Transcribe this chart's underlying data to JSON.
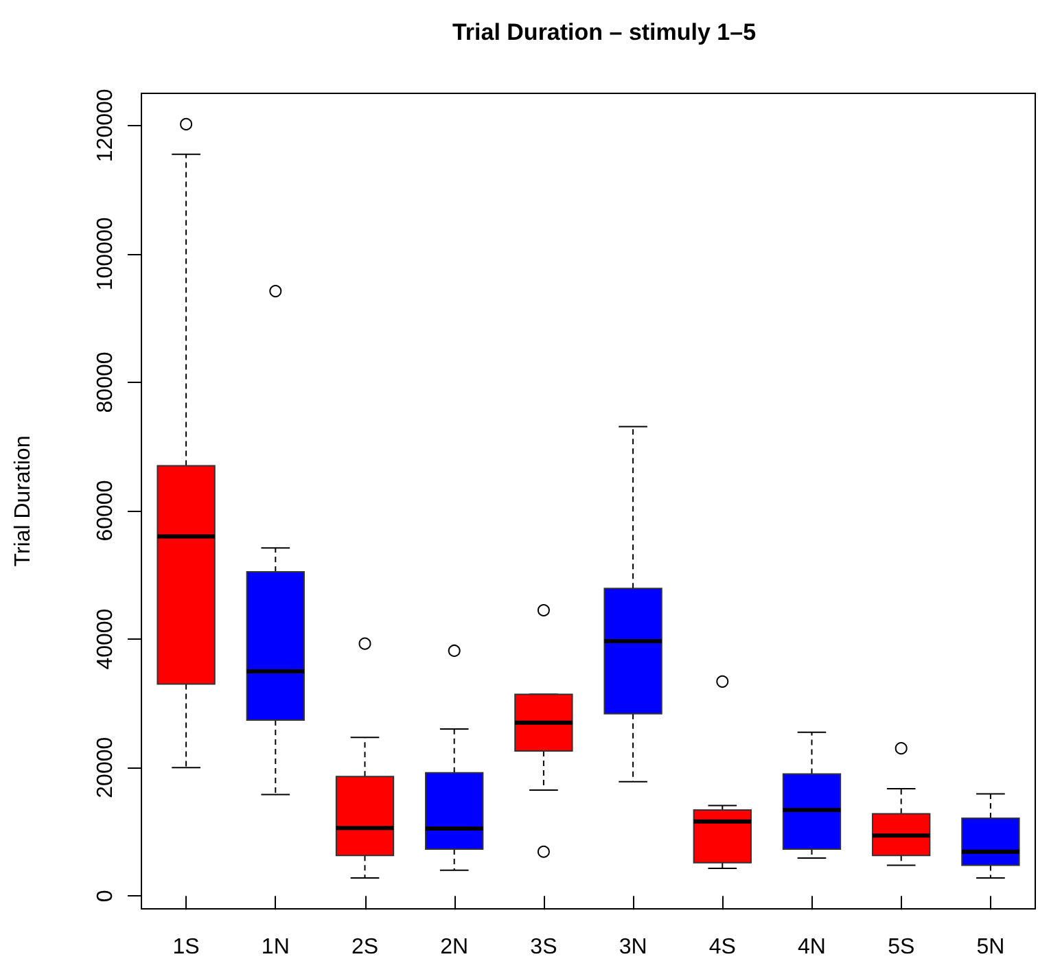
{
  "chart_data": {
    "type": "box",
    "title": "Trial Duration – stimuly 1–5",
    "ylabel": "Trial Duration",
    "categories": [
      "1S",
      "1N",
      "2S",
      "2N",
      "3S",
      "3N",
      "4S",
      "4N",
      "5S",
      "5N"
    ],
    "colors": [
      "#ff0000",
      "#0000ff",
      "#ff0000",
      "#0000ff",
      "#ff0000",
      "#0000ff",
      "#ff0000",
      "#0000ff",
      "#ff0000",
      "#0000ff"
    ],
    "boxes": [
      {
        "low": 20000,
        "q1": 33000,
        "median": 56000,
        "q3": 67000,
        "high": 115500,
        "outliers": [
          120200
        ]
      },
      {
        "low": 15800,
        "q1": 27400,
        "median": 35000,
        "q3": 50500,
        "high": 54200,
        "outliers": [
          94200
        ]
      },
      {
        "low": 2800,
        "q1": 6300,
        "median": 10600,
        "q3": 18600,
        "high": 24700,
        "outliers": [
          39300
        ]
      },
      {
        "low": 4000,
        "q1": 7300,
        "median": 10500,
        "q3": 19200,
        "high": 26000,
        "outliers": [
          38200
        ]
      },
      {
        "low": 16500,
        "q1": 22600,
        "median": 27000,
        "q3": 31400,
        "high": 31400,
        "outliers": [
          44500,
          6900
        ]
      },
      {
        "low": 17800,
        "q1": 28400,
        "median": 39700,
        "q3": 47900,
        "high": 73100
      },
      {
        "low": 4300,
        "q1": 5200,
        "median": 11600,
        "q3": 13400,
        "high": 14100,
        "outliers": [
          33400
        ]
      },
      {
        "low": 5900,
        "q1": 7300,
        "median": 13400,
        "q3": 19000,
        "high": 25500
      },
      {
        "low": 4800,
        "q1": 6300,
        "median": 9400,
        "q3": 12800,
        "high": 16700,
        "outliers": [
          23000
        ]
      },
      {
        "low": 2800,
        "q1": 4800,
        "median": 6900,
        "q3": 12100,
        "high": 15900
      }
    ],
    "ylim": [
      -2000,
      125000
    ],
    "yticks": [
      0,
      20000,
      40000,
      60000,
      80000,
      100000,
      120000
    ],
    "grid": false
  }
}
